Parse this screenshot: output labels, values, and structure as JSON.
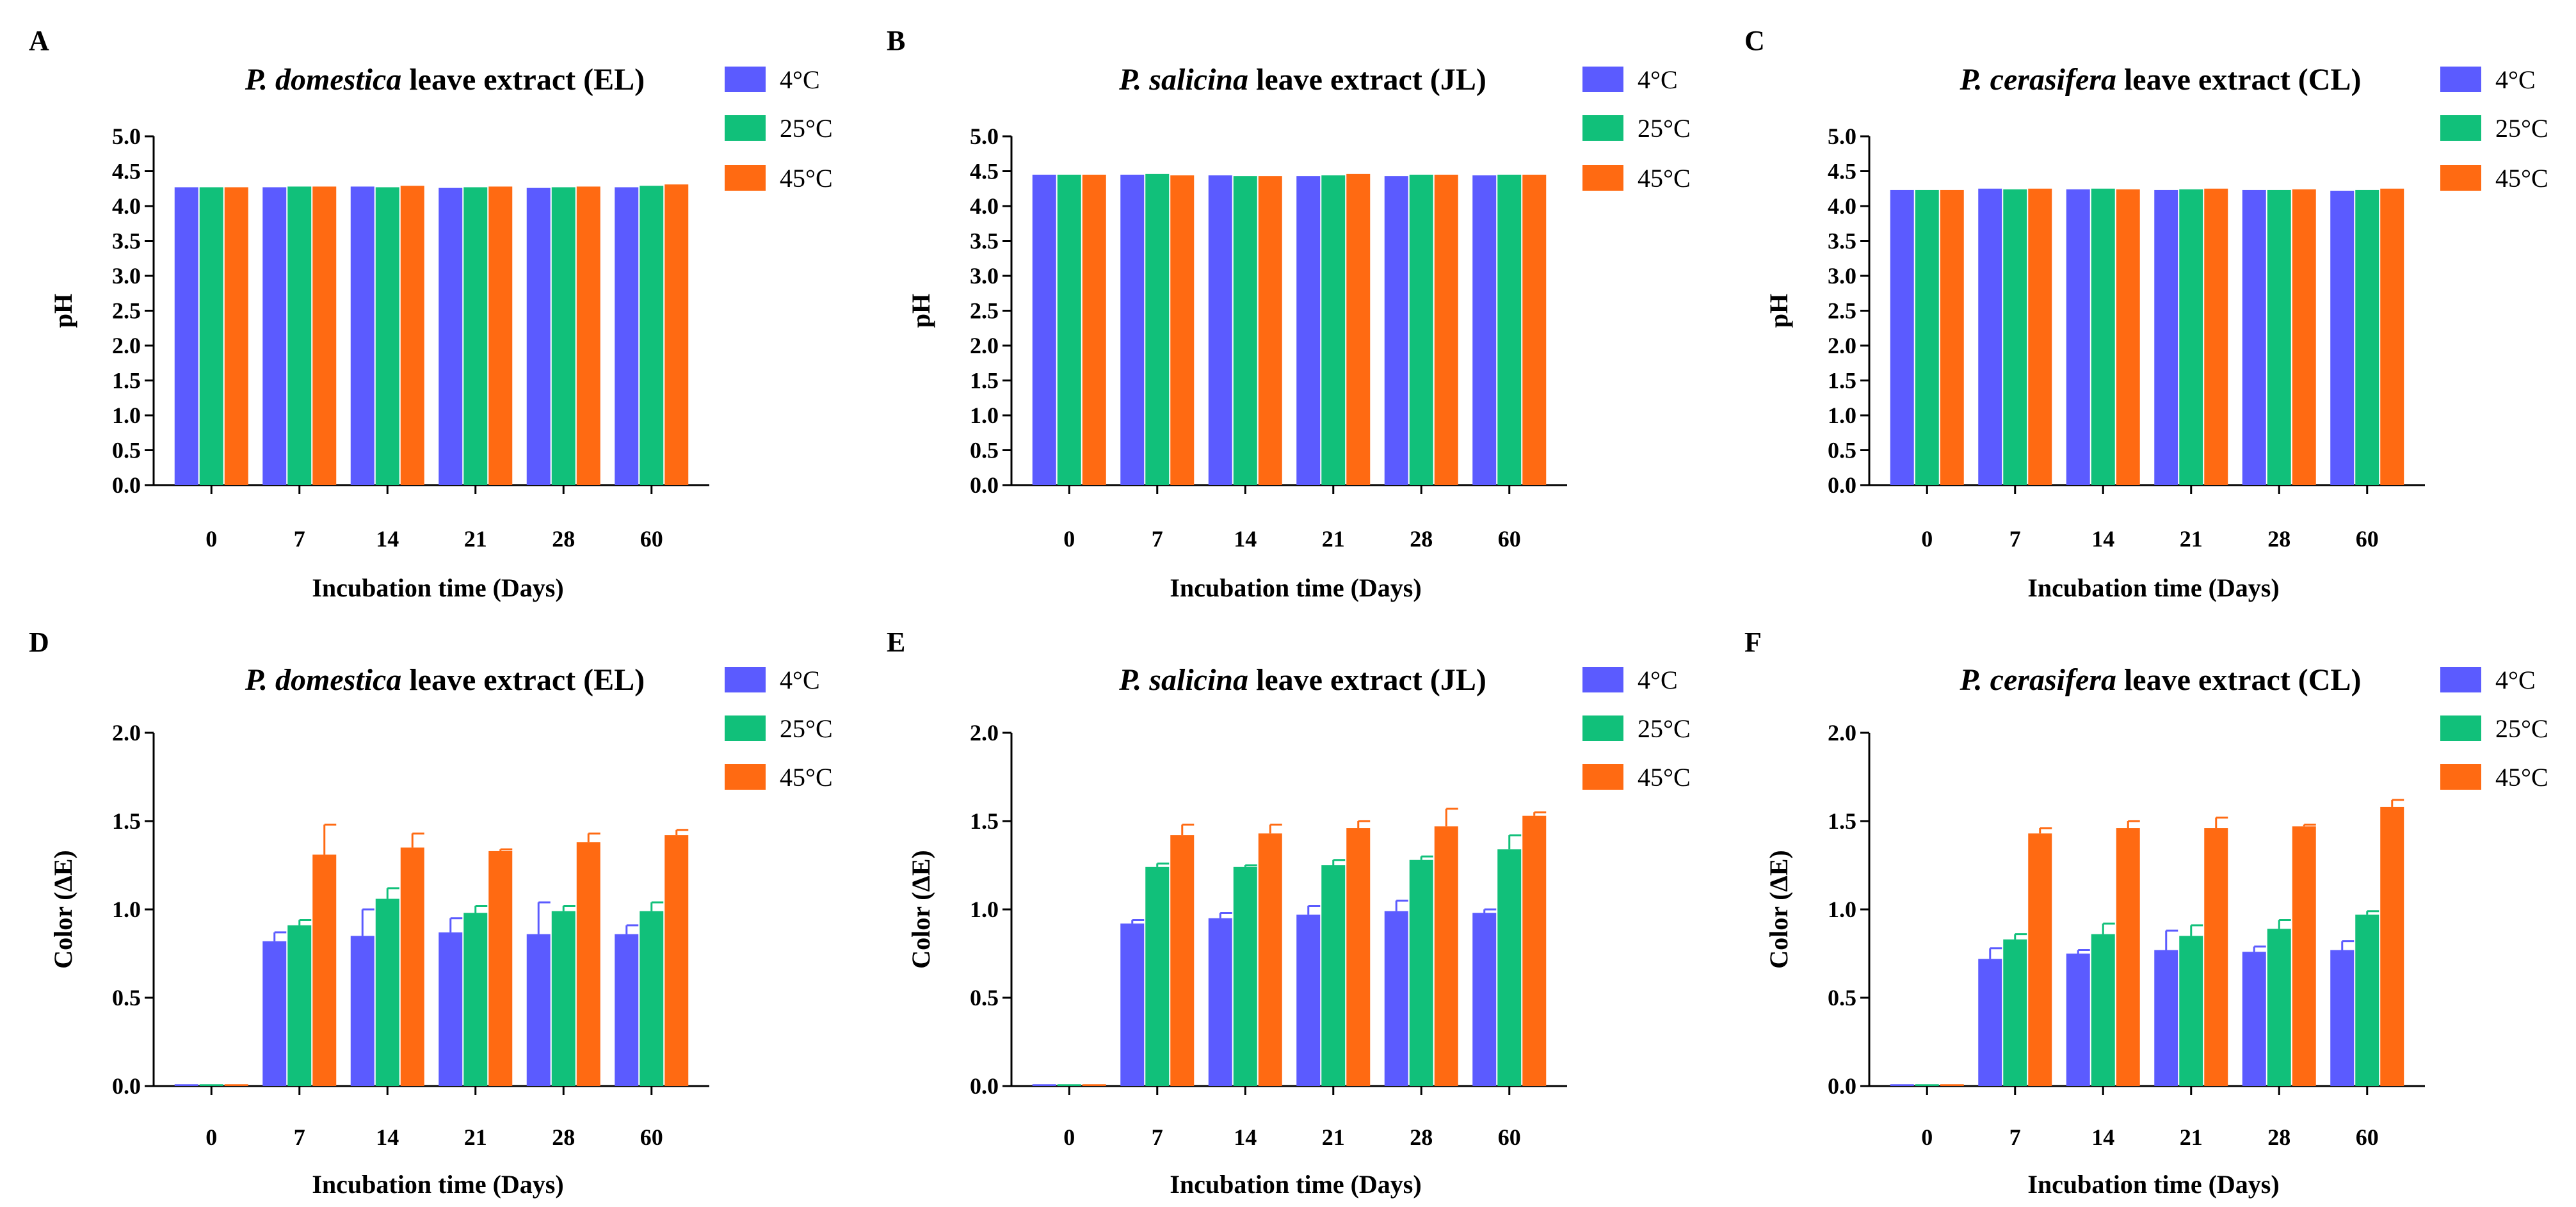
{
  "figure": {
    "series_names": [
      "4°C",
      "25°C",
      "45°C"
    ],
    "series_colors": [
      "#5b5bff",
      "#11c07a",
      "#ff6a12"
    ]
  },
  "chart_data": [
    {
      "panel": "A",
      "type": "bar",
      "title": {
        "species": "P. domestica",
        "rest": " leave extract (EL)"
      },
      "xlabel": "Incubation time (Days)",
      "ylabel": "pH",
      "categories": [
        "0",
        "7",
        "14",
        "21",
        "28",
        "60"
      ],
      "ylim": [
        0,
        5.0
      ],
      "yticks": [
        "0.0",
        "0.5",
        "1.0",
        "1.5",
        "2.0",
        "2.5",
        "3.0",
        "3.5",
        "4.0",
        "4.5",
        "5.0"
      ],
      "series": [
        {
          "name": "4°C",
          "values": [
            4.27,
            4.27,
            4.28,
            4.26,
            4.26,
            4.27
          ],
          "errors": [
            0,
            0,
            0,
            0,
            0,
            0
          ]
        },
        {
          "name": "25°C",
          "values": [
            4.27,
            4.28,
            4.27,
            4.27,
            4.27,
            4.29
          ],
          "errors": [
            0,
            0,
            0,
            0,
            0,
            0
          ]
        },
        {
          "name": "45°C",
          "values": [
            4.27,
            4.28,
            4.29,
            4.28,
            4.28,
            4.31
          ],
          "errors": [
            0,
            0,
            0,
            0,
            0,
            0
          ]
        }
      ]
    },
    {
      "panel": "B",
      "type": "bar",
      "title": {
        "species": "P. salicina",
        "rest": " leave extract (JL)"
      },
      "xlabel": "Incubation time (Days)",
      "ylabel": "pH",
      "categories": [
        "0",
        "7",
        "14",
        "21",
        "28",
        "60"
      ],
      "ylim": [
        0,
        5.0
      ],
      "yticks": [
        "0.0",
        "0.5",
        "1.0",
        "1.5",
        "2.0",
        "2.5",
        "3.0",
        "3.5",
        "4.0",
        "4.5",
        "5.0"
      ],
      "series": [
        {
          "name": "4°C",
          "values": [
            4.45,
            4.45,
            4.44,
            4.43,
            4.43,
            4.44
          ],
          "errors": [
            0,
            0,
            0,
            0,
            0,
            0
          ]
        },
        {
          "name": "25°C",
          "values": [
            4.45,
            4.46,
            4.43,
            4.44,
            4.45,
            4.45
          ],
          "errors": [
            0,
            0,
            0,
            0,
            0,
            0
          ]
        },
        {
          "name": "45°C",
          "values": [
            4.45,
            4.44,
            4.43,
            4.46,
            4.45,
            4.45
          ],
          "errors": [
            0,
            0,
            0,
            0,
            0,
            0
          ]
        }
      ]
    },
    {
      "panel": "C",
      "type": "bar",
      "title": {
        "species": "P. cerasifera",
        "rest": " leave extract (CL)"
      },
      "xlabel": "Incubation time (Days)",
      "ylabel": "pH",
      "categories": [
        "0",
        "7",
        "14",
        "21",
        "28",
        "60"
      ],
      "ylim": [
        0,
        5.0
      ],
      "yticks": [
        "0.0",
        "0.5",
        "1.0",
        "1.5",
        "2.0",
        "2.5",
        "3.0",
        "3.5",
        "4.0",
        "4.5",
        "5.0"
      ],
      "series": [
        {
          "name": "4°C",
          "values": [
            4.23,
            4.25,
            4.24,
            4.23,
            4.23,
            4.22
          ],
          "errors": [
            0,
            0,
            0,
            0,
            0,
            0
          ]
        },
        {
          "name": "25°C",
          "values": [
            4.23,
            4.24,
            4.25,
            4.24,
            4.23,
            4.23
          ],
          "errors": [
            0,
            0,
            0,
            0,
            0,
            0
          ]
        },
        {
          "name": "45°C",
          "values": [
            4.23,
            4.25,
            4.24,
            4.25,
            4.24,
            4.25
          ],
          "errors": [
            0,
            0,
            0,
            0,
            0,
            0
          ]
        }
      ]
    },
    {
      "panel": "D",
      "type": "bar",
      "title": {
        "species": "P. domestica",
        "rest": " leave extract (EL)"
      },
      "xlabel": "Incubation time (Days)",
      "ylabel": "Color (ΔE)",
      "categories": [
        "0",
        "7",
        "14",
        "21",
        "28",
        "60"
      ],
      "ylim": [
        0,
        2.0
      ],
      "yticks": [
        "0.0",
        "0.5",
        "1.0",
        "1.5",
        "2.0"
      ],
      "series": [
        {
          "name": "4°C",
          "values": [
            0.01,
            0.82,
            0.85,
            0.87,
            0.86,
            0.86
          ],
          "errors": [
            0,
            0.05,
            0.15,
            0.08,
            0.18,
            0.05
          ]
        },
        {
          "name": "25°C",
          "values": [
            0.01,
            0.91,
            1.06,
            0.98,
            0.99,
            0.99
          ],
          "errors": [
            0,
            0.03,
            0.06,
            0.04,
            0.03,
            0.05
          ]
        },
        {
          "name": "45°C",
          "values": [
            0.01,
            1.31,
            1.35,
            1.33,
            1.38,
            1.42
          ],
          "errors": [
            0,
            0.17,
            0.08,
            0.01,
            0.05,
            0.03
          ]
        }
      ]
    },
    {
      "panel": "E",
      "type": "bar",
      "title": {
        "species": "P. salicina",
        "rest": " leave extract (JL)"
      },
      "xlabel": "Incubation time (Days)",
      "ylabel": "Color (ΔE)",
      "categories": [
        "0",
        "7",
        "14",
        "21",
        "28",
        "60"
      ],
      "ylim": [
        0,
        2.0
      ],
      "yticks": [
        "0.0",
        "0.5",
        "1.0",
        "1.5",
        "2.0"
      ],
      "series": [
        {
          "name": "4°C",
          "values": [
            0.01,
            0.92,
            0.95,
            0.97,
            0.99,
            0.98
          ],
          "errors": [
            0,
            0.02,
            0.03,
            0.05,
            0.06,
            0.02
          ]
        },
        {
          "name": "25°C",
          "values": [
            0.01,
            1.24,
            1.24,
            1.25,
            1.28,
            1.34
          ],
          "errors": [
            0,
            0.02,
            0.01,
            0.03,
            0.02,
            0.08
          ]
        },
        {
          "name": "45°C",
          "values": [
            0.01,
            1.42,
            1.43,
            1.46,
            1.47,
            1.53
          ],
          "errors": [
            0,
            0.06,
            0.05,
            0.04,
            0.1,
            0.02
          ]
        }
      ]
    },
    {
      "panel": "F",
      "type": "bar",
      "title": {
        "species": "P. cerasifera",
        "rest": " leave extract (CL)"
      },
      "xlabel": "Incubation time (Days)",
      "ylabel": "Color (ΔE)",
      "categories": [
        "0",
        "7",
        "14",
        "21",
        "28",
        "60"
      ],
      "ylim": [
        0,
        2.0
      ],
      "yticks": [
        "0.0",
        "0.5",
        "1.0",
        "1.5",
        "2.0"
      ],
      "series": [
        {
          "name": "4°C",
          "values": [
            0.01,
            0.72,
            0.75,
            0.77,
            0.76,
            0.77
          ],
          "errors": [
            0,
            0.06,
            0.02,
            0.11,
            0.03,
            0.05
          ]
        },
        {
          "name": "25°C",
          "values": [
            0.01,
            0.83,
            0.86,
            0.85,
            0.89,
            0.97
          ],
          "errors": [
            0,
            0.03,
            0.06,
            0.06,
            0.05,
            0.02
          ]
        },
        {
          "name": "45°C",
          "values": [
            0.01,
            1.43,
            1.46,
            1.46,
            1.47,
            1.58
          ],
          "errors": [
            0,
            0.03,
            0.04,
            0.06,
            0.01,
            0.04
          ]
        }
      ]
    }
  ]
}
